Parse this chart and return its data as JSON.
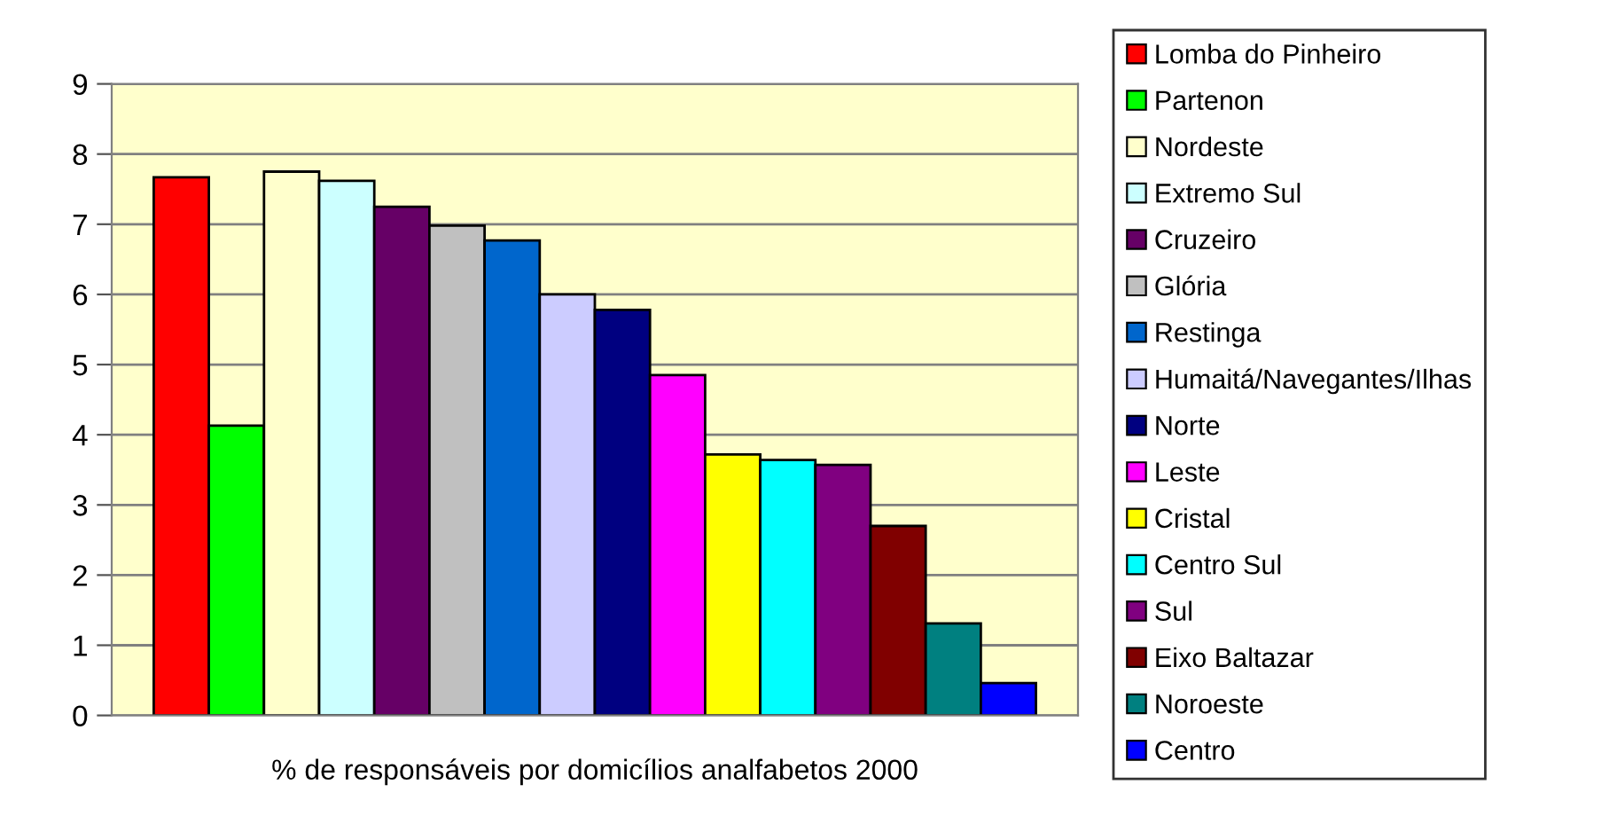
{
  "chart_data": {
    "type": "bar",
    "categories": [
      null
    ],
    "xlabel": "% de responsáveis por domicílios analfabetos 2000",
    "ylim": [
      0,
      9
    ],
    "yticks": [
      0,
      1,
      2,
      3,
      4,
      5,
      6,
      7,
      8,
      9
    ],
    "grid": "y",
    "legend": "right",
    "series": [
      {
        "name": "Lomba do Pinheiro",
        "color": "#ff0000",
        "values": [
          7.67
        ]
      },
      {
        "name": "Partenon",
        "color": "#00ff00",
        "values": [
          4.13
        ]
      },
      {
        "name": "Nordeste",
        "color": "#ffffcc",
        "values": [
          7.75
        ]
      },
      {
        "name": "Extremo Sul",
        "color": "#ccffff",
        "values": [
          7.62
        ]
      },
      {
        "name": "Cruzeiro",
        "color": "#660066",
        "values": [
          7.25
        ]
      },
      {
        "name": "Glória",
        "color": "#c0c0c0",
        "values": [
          6.98
        ]
      },
      {
        "name": "Restinga",
        "color": "#0066cc",
        "values": [
          6.77
        ]
      },
      {
        "name": "Humaitá/Navegantes/Ilhas",
        "color": "#ccccff",
        "values": [
          6.0
        ]
      },
      {
        "name": "Norte",
        "color": "#000080",
        "values": [
          5.78
        ]
      },
      {
        "name": "Leste",
        "color": "#ff00ff",
        "values": [
          4.85
        ]
      },
      {
        "name": "Cristal",
        "color": "#ffff00",
        "values": [
          3.72
        ]
      },
      {
        "name": "Centro Sul",
        "color": "#00ffff",
        "values": [
          3.64
        ]
      },
      {
        "name": "Sul",
        "color": "#800080",
        "values": [
          3.57
        ]
      },
      {
        "name": "Eixo Baltazar",
        "color": "#800000",
        "values": [
          2.7
        ]
      },
      {
        "name": "Noroeste",
        "color": "#008080",
        "values": [
          1.31
        ]
      },
      {
        "name": "Centro",
        "color": "#0000ff",
        "values": [
          0.46
        ]
      }
    ]
  }
}
